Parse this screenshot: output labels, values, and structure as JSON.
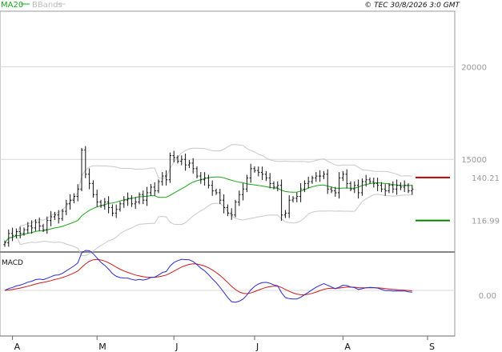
{
  "header": {
    "legend_ma": "MA20",
    "legend_bbands": "BBands",
    "copyright": "© TEC 30/8/2026 3:0 GMT"
  },
  "colors": {
    "price": "#111111",
    "ma": "#1aa31a",
    "bbands": "#c8c8c8",
    "resistance": "#c00000",
    "support": "#008000",
    "macd": "#2a2acc",
    "signal": "#cc1a1a",
    "grid": "#d8d8d8",
    "label": "#9a9a9a"
  },
  "chart_data": [
    {
      "type": "ohlc",
      "title": "",
      "y_ticks": [
        {
          "value": 200,
          "label": "20000"
        },
        {
          "value": 150,
          "label": "15000"
        }
      ],
      "ylim": [
        100,
        230
      ],
      "grid_values": [
        200,
        150,
        100
      ],
      "grid": true,
      "month_labels": [
        {
          "label": "A",
          "bar": 2
        },
        {
          "label": "M",
          "bar": 24
        },
        {
          "label": "J",
          "bar": 44
        },
        {
          "label": "J",
          "bar": 65
        },
        {
          "label": "A",
          "bar": 88
        },
        {
          "label": "S",
          "bar": 110
        }
      ],
      "levels": [
        {
          "name": "resistance",
          "value": 140.21,
          "label": "140.21"
        },
        {
          "name": "support",
          "value": 116.99,
          "label": "116.99"
        }
      ],
      "close": [
        105,
        110,
        109,
        111,
        110,
        112,
        114,
        113,
        116,
        114,
        112,
        117,
        119,
        120,
        118,
        122,
        126,
        128,
        130,
        134,
        155,
        142,
        137,
        131,
        127,
        125,
        127,
        124,
        121,
        123,
        126,
        128,
        129,
        126,
        127,
        131,
        128,
        132,
        135,
        133,
        138,
        141,
        139,
        152,
        151,
        149,
        150,
        147,
        148,
        145,
        141,
        139,
        140,
        136,
        133,
        132,
        128,
        124,
        121,
        120,
        127,
        131,
        134,
        140,
        145,
        144,
        143,
        142,
        140,
        137,
        135,
        136,
        120,
        121,
        128,
        129,
        130,
        134,
        137,
        138,
        140,
        141,
        141,
        142,
        134,
        133,
        132,
        140,
        142,
        137,
        134,
        136,
        132,
        138,
        139,
        138,
        137,
        136,
        134,
        133,
        136,
        134,
        136,
        135,
        136,
        133,
        134
      ]
    },
    {
      "type": "line",
      "title": "MACD",
      "y_ticks": [
        {
          "value": 0,
          "label": "0.00"
        }
      ],
      "series": [
        {
          "name": "MACD"
        },
        {
          "name": "Signal"
        }
      ]
    }
  ]
}
